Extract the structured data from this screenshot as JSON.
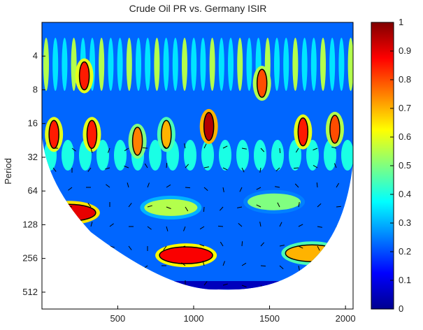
{
  "chart_data": {
    "type": "heatmap",
    "title": "Crude Oil PR vs. Germany ISIR",
    "ylabel": "Period",
    "xlabel": "",
    "x_ticks": [
      500,
      1000,
      1500,
      2000
    ],
    "xlim": [
      1,
      2050
    ],
    "y_ticks": [
      4,
      8,
      16,
      32,
      64,
      128,
      256,
      512
    ],
    "ylim": [
      2,
      724
    ],
    "y_scale": "log2",
    "y_reversed": true,
    "colorbar": {
      "ticks": [
        0,
        0.1,
        0.2,
        0.3,
        0.4,
        0.5,
        0.6,
        0.7,
        0.8,
        0.9,
        1
      ],
      "range": [
        0,
        1
      ],
      "colormap": "jet"
    },
    "regions": [
      {
        "x": 80,
        "period": 20,
        "value": 0.85
      },
      {
        "x": 330,
        "period": 20,
        "value": 0.85
      },
      {
        "x": 630,
        "period": 23,
        "value": 0.75
      },
      {
        "x": 820,
        "period": 20,
        "value": 0.7
      },
      {
        "x": 1100,
        "period": 17,
        "value": 0.95
      },
      {
        "x": 1720,
        "period": 19,
        "value": 0.85
      },
      {
        "x": 1930,
        "period": 18,
        "value": 0.8
      },
      {
        "x": 180,
        "period": 100,
        "value": 0.9
      },
      {
        "x": 850,
        "period": 90,
        "value": 0.55
      },
      {
        "x": 1530,
        "period": 80,
        "value": 0.5
      },
      {
        "x": 950,
        "period": 240,
        "value": 0.88
      },
      {
        "x": 1780,
        "period": 230,
        "value": 0.7
      },
      {
        "x": 280,
        "period": 6,
        "value": 0.85
      },
      {
        "x": 1450,
        "period": 7,
        "value": 0.8
      }
    ],
    "colors": {
      "jet": [
        "#00008f",
        "#0000ff",
        "#00ffff",
        "#ffff00",
        "#ff0000",
        "#800000"
      ],
      "frame": "#000000"
    }
  }
}
